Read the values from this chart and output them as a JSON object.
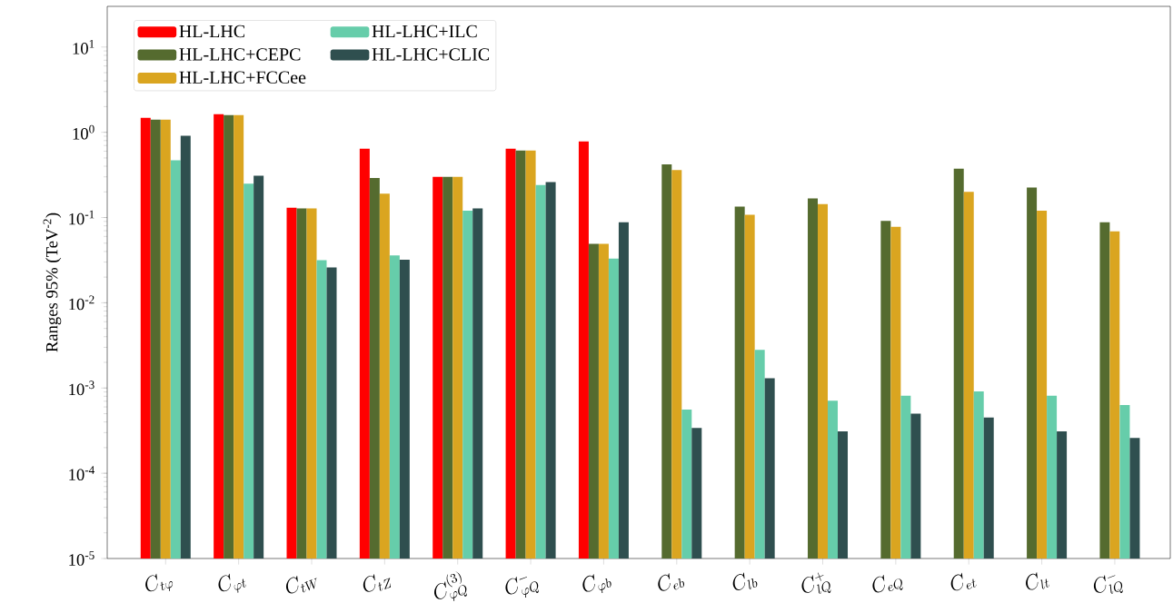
{
  "chart_data": {
    "type": "bar",
    "ylabel": "Ranges 95% (TeV$^{-2}$)",
    "categories": [
      "C_{t\\varphi}",
      "C_{\\varphi t}",
      "C_{tW}",
      "C_{tZ}",
      "C_{\\varphi Q}^{(3)}",
      "C_{\\varphi Q}^{-}",
      "C_{\\varphi b}",
      "C_{eb}",
      "C_{lb}",
      "C_{lQ}^{+}",
      "C_{eQ}",
      "C_{et}",
      "C_{lt}",
      "C_{lQ}^{-}"
    ],
    "series": [
      {
        "name": "HL-LHC",
        "color": "#ff0000",
        "values": [
          1.48,
          1.63,
          0.13,
          0.64,
          0.3,
          0.64,
          0.78,
          null,
          null,
          null,
          null,
          null,
          null,
          null
        ]
      },
      {
        "name": "HL-LHC+CEPC",
        "color": "#556b2f",
        "values": [
          1.41,
          1.59,
          0.128,
          0.29,
          0.3,
          0.61,
          0.049,
          0.42,
          0.134,
          0.167,
          0.091,
          0.375,
          0.225,
          0.088
        ]
      },
      {
        "name": "HL-LHC+FCCee",
        "color": "#daa520",
        "values": [
          1.41,
          1.59,
          0.128,
          0.19,
          0.3,
          0.61,
          0.049,
          0.36,
          0.108,
          0.144,
          0.078,
          0.2,
          0.12,
          0.069
        ]
      },
      {
        "name": "HL-LHC+ILC",
        "color": "#66cdaa",
        "values": [
          0.47,
          0.25,
          0.0316,
          0.036,
          0.12,
          0.24,
          0.033,
          0.00056,
          0.0028,
          0.00071,
          0.00081,
          0.00091,
          0.00081,
          0.00063
        ]
      },
      {
        "name": "HL-LHC+CLIC",
        "color": "#2f4f4f",
        "values": [
          0.91,
          0.31,
          0.026,
          0.032,
          0.128,
          0.26,
          0.088,
          0.00034,
          0.0013,
          0.00031,
          0.0005,
          0.00045,
          0.00031,
          0.00026
        ]
      }
    ],
    "log": "y",
    "ylim": [
      1e-05,
      30
    ],
    "yticks": [
      {
        "value": 1e-05,
        "label": "10$^{-5}$"
      },
      {
        "value": 0.0001,
        "label": "10$^{-4}$"
      },
      {
        "value": 0.001,
        "label": "10$^{-3}$"
      },
      {
        "value": 0.01,
        "label": "10$^{-2}$"
      },
      {
        "value": 0.1,
        "label": "10$^{-1}$"
      },
      {
        "value": 1,
        "label": "10$^{0}$"
      },
      {
        "value": 10,
        "label": "10$^{1}$"
      }
    ],
    "grid": false,
    "legend": "top left"
  }
}
